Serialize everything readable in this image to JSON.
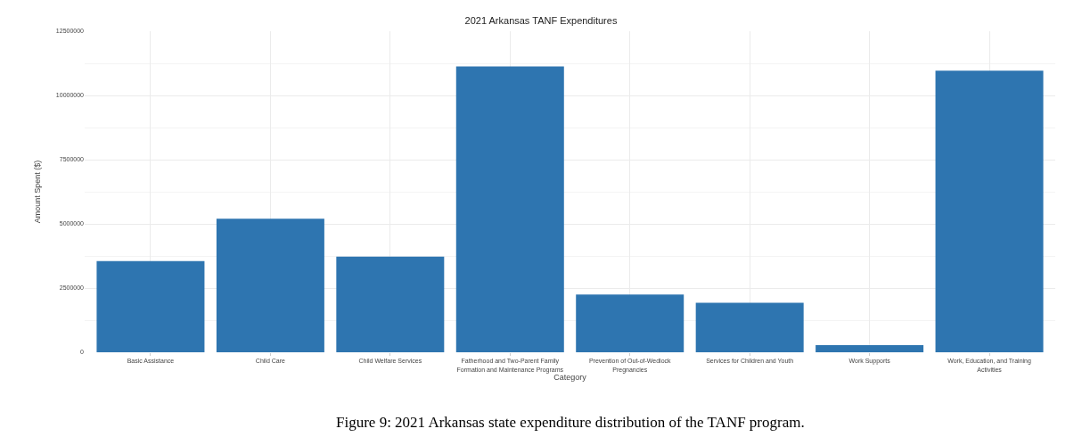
{
  "chart_data": {
    "type": "bar",
    "title": "2021 Arkansas TANF Expenditures",
    "xlabel": "Category",
    "ylabel": "Amount Spent ($)",
    "categories": [
      "Basic Assistance",
      "Child Care",
      "Child Welfare Services",
      "Fatherhood and Two-Parent Family Formation and Maintenance Programs",
      "Prevention of Out-of-Wedlock Pregnancies",
      "Services for Children and Youth",
      "Work Supports",
      "Work, Education, and Training Activities"
    ],
    "values": [
      3550000,
      5200000,
      3720000,
      11130000,
      2250000,
      1930000,
      280000,
      10960000
    ],
    "color": "#2e75b0",
    "ylim": [
      0,
      12500000
    ],
    "yticks": [
      0,
      {
        "value": 2500000,
        "label": "2500000"
      },
      {
        "value": 5000000,
        "label": "5000000"
      },
      {
        "value": 7500000,
        "label": "7500000"
      },
      {
        "value": 10000000,
        "label": "10000000"
      },
      {
        "value": 12500000,
        "label": "12500000"
      }
    ],
    "grid": true,
    "annotations": [
      "Figure 9: 2021 Arkansas state expenditure distribution of the TANF program."
    ]
  }
}
